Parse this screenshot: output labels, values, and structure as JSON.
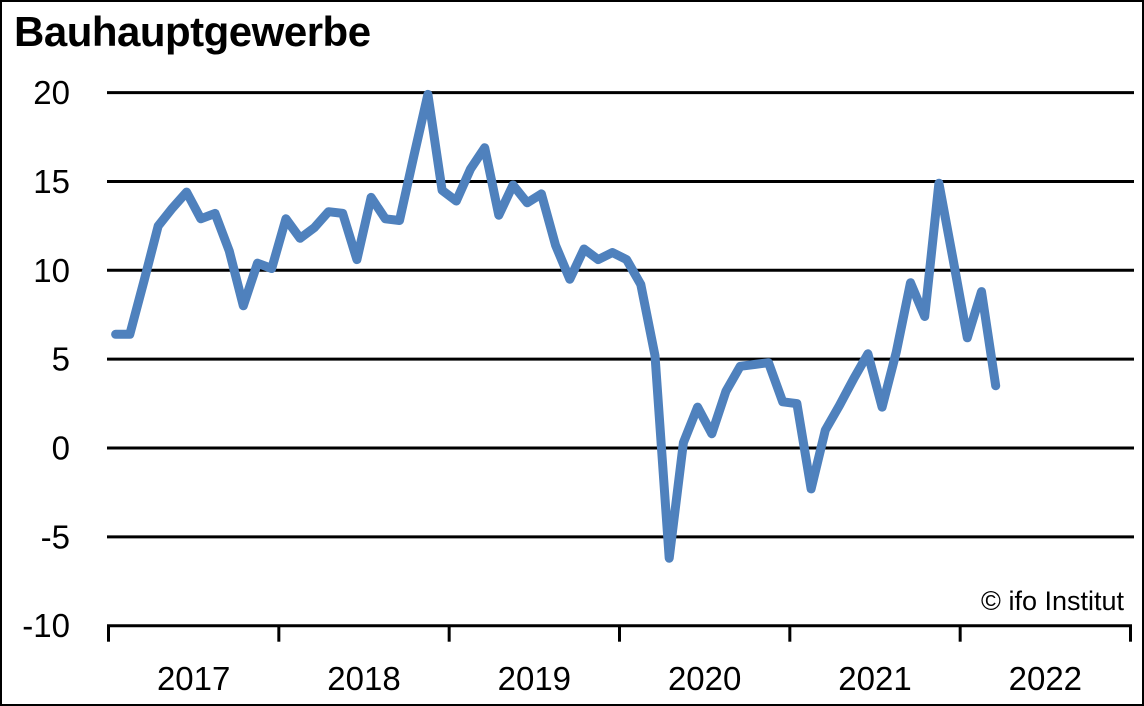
{
  "title": "Bauhauptgewerbe",
  "credit": "© ifo Institut",
  "colors": {
    "line": "#4f81bd",
    "grid": "#000000",
    "axis": "#000000",
    "background": "#ffffff",
    "text": "#000000"
  },
  "chart_data": {
    "type": "line",
    "title": "Bauhauptgewerbe",
    "annotation": "© ifo Institut",
    "legend": "none",
    "grid": "horizontal",
    "ylim": [
      -10,
      20
    ],
    "y_ticks": [
      -10,
      -5,
      0,
      5,
      10,
      15,
      20
    ],
    "x_tick_labels": [
      "2017",
      "2018",
      "2019",
      "2020",
      "2021",
      "2022"
    ],
    "x_span_months": 72,
    "series": [
      {
        "name": "Bauhauptgewerbe",
        "start": "2017-01",
        "frequency": "monthly",
        "values": [
          6.4,
          6.4,
          9.4,
          12.5,
          13.5,
          14.4,
          12.9,
          13.2,
          11.1,
          8.0,
          10.4,
          10.1,
          12.9,
          11.8,
          12.4,
          13.3,
          13.2,
          10.6,
          14.1,
          12.9,
          12.8,
          16.4,
          19.9,
          14.5,
          13.9,
          15.7,
          16.9,
          13.1,
          14.8,
          13.8,
          14.3,
          11.4,
          9.5,
          11.2,
          10.6,
          11.0,
          10.6,
          9.2,
          5.2,
          -6.2,
          0.3,
          2.3,
          0.8,
          3.2,
          4.6,
          4.7,
          4.8,
          2.6,
          2.5,
          -2.3,
          1.0,
          2.4,
          3.9,
          5.3,
          2.3,
          5.4,
          9.3,
          7.4,
          14.9,
          10.6,
          6.2,
          8.8,
          3.5
        ]
      }
    ]
  }
}
